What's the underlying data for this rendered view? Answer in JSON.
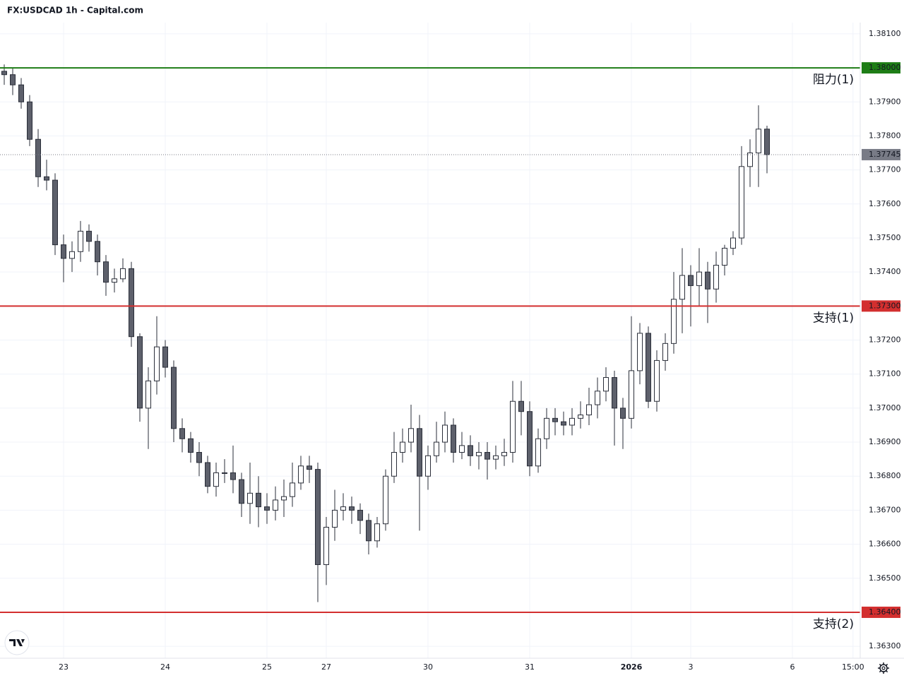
{
  "chart_data": {
    "type": "candlestick",
    "title": "FX:USDCAD 1h - Capital.com",
    "x": [
      -14,
      -12,
      -10,
      -8,
      -6,
      -4,
      -2,
      0,
      2,
      4,
      6,
      8,
      10,
      12,
      14,
      16,
      18,
      20,
      22,
      24,
      26,
      28,
      30,
      32,
      34,
      36,
      38,
      40,
      42,
      44,
      46,
      48,
      50,
      52,
      54,
      56,
      58,
      60,
      62,
      64,
      66,
      68,
      70,
      72,
      74,
      76,
      78,
      80,
      82,
      84,
      86,
      88,
      90,
      92,
      94,
      96,
      98,
      100,
      102,
      104,
      106,
      108,
      110,
      112,
      114,
      116,
      118,
      120,
      122,
      124,
      126,
      128,
      130,
      132,
      134,
      136,
      138,
      140,
      142,
      144,
      146,
      148,
      150,
      152,
      154,
      156,
      158,
      160,
      162,
      164,
      166
    ],
    "open": [
      1.3799,
      1.3798,
      1.3795,
      1.379,
      1.3779,
      1.3768,
      1.3767,
      1.3748,
      1.3744,
      1.3746,
      1.3752,
      1.3749,
      1.3743,
      1.3737,
      1.3738,
      1.3741,
      1.3721,
      1.37,
      1.3708,
      1.3718,
      1.3712,
      1.3694,
      1.3691,
      1.3687,
      1.3684,
      1.3677,
      1.3681,
      1.3681,
      1.3679,
      1.3672,
      1.3675,
      1.3671,
      1.367,
      1.3673,
      1.3674,
      1.3678,
      1.3683,
      1.3682,
      1.3654,
      1.3665,
      1.367,
      1.3671,
      1.367,
      1.3667,
      1.3661,
      1.3666,
      1.368,
      1.3687,
      1.369,
      1.3694,
      1.368,
      1.3686,
      1.369,
      1.3695,
      1.3687,
      1.3689,
      1.3686,
      1.3687,
      1.3685,
      1.3686,
      1.3687,
      1.3702,
      1.3699,
      1.3683,
      1.3691,
      1.3697,
      1.3696,
      1.3695,
      1.3697,
      1.3698,
      1.3701,
      1.3705,
      1.3709,
      1.37,
      1.3697,
      1.3711,
      1.3722,
      1.3702,
      1.3714,
      1.3719,
      1.3732,
      1.3739,
      1.3736,
      1.374,
      1.3735,
      1.3742,
      1.3747,
      1.375,
      1.3771,
      1.3775,
      1.3782
    ],
    "high": [
      1.3801,
      1.38,
      1.3797,
      1.3792,
      1.3782,
      1.3773,
      1.3769,
      1.3751,
      1.3749,
      1.3755,
      1.3754,
      1.3751,
      1.3745,
      1.3741,
      1.3744,
      1.3743,
      1.3722,
      1.3712,
      1.3727,
      1.372,
      1.3714,
      1.3697,
      1.3693,
      1.369,
      1.3686,
      1.3684,
      1.3685,
      1.3689,
      1.3681,
      1.3684,
      1.368,
      1.3675,
      1.3677,
      1.3679,
      1.3684,
      1.3686,
      1.3686,
      1.3684,
      1.3668,
      1.3676,
      1.3675,
      1.3674,
      1.3672,
      1.3669,
      1.3668,
      1.3682,
      1.3693,
      1.3694,
      1.3701,
      1.3698,
      1.3689,
      1.3696,
      1.3699,
      1.3697,
      1.3693,
      1.3692,
      1.369,
      1.369,
      1.3689,
      1.3691,
      1.3708,
      1.3708,
      1.3702,
      1.3694,
      1.37,
      1.37,
      1.3699,
      1.37,
      1.3702,
      1.3706,
      1.3709,
      1.3712,
      1.3711,
      1.3703,
      1.3727,
      1.3725,
      1.3724,
      1.3717,
      1.3722,
      1.374,
      1.3747,
      1.3742,
      1.3747,
      1.3743,
      1.3746,
      1.3748,
      1.3752,
      1.3777,
      1.3779,
      1.3789,
      1.3783
    ],
    "low": [
      1.3795,
      1.3792,
      1.3788,
      1.3777,
      1.3765,
      1.3764,
      1.3745,
      1.3737,
      1.374,
      1.3743,
      1.3746,
      1.3739,
      1.3733,
      1.3734,
      1.3737,
      1.3718,
      1.3696,
      1.3688,
      1.3704,
      1.3709,
      1.369,
      1.3687,
      1.3684,
      1.368,
      1.3675,
      1.3674,
      1.3678,
      1.3675,
      1.3668,
      1.3666,
      1.3665,
      1.3666,
      1.3667,
      1.3668,
      1.3671,
      1.3676,
      1.3678,
      1.3643,
      1.3648,
      1.3661,
      1.3667,
      1.3666,
      1.3663,
      1.3657,
      1.3659,
      1.3664,
      1.3678,
      1.3684,
      1.3687,
      1.3664,
      1.3676,
      1.3684,
      1.3687,
      1.3684,
      1.3685,
      1.3683,
      1.3682,
      1.3679,
      1.3682,
      1.3683,
      1.3684,
      1.3692,
      1.368,
      1.3681,
      1.3688,
      1.3692,
      1.3692,
      1.3692,
      1.3694,
      1.3695,
      1.3697,
      1.3702,
      1.3689,
      1.3688,
      1.3694,
      1.3707,
      1.37,
      1.3699,
      1.3711,
      1.3716,
      1.3722,
      1.3724,
      1.373,
      1.3725,
      1.3731,
      1.3739,
      1.3745,
      1.3748,
      1.3765,
      1.3765,
      1.3769
    ],
    "close": [
      1.3798,
      1.3795,
      1.379,
      1.3779,
      1.3768,
      1.3767,
      1.3748,
      1.3744,
      1.3746,
      1.3752,
      1.3749,
      1.3743,
      1.3737,
      1.3738,
      1.3741,
      1.3721,
      1.37,
      1.3708,
      1.3718,
      1.3712,
      1.3694,
      1.3691,
      1.3687,
      1.3684,
      1.3677,
      1.3681,
      1.3681,
      1.3679,
      1.3672,
      1.3675,
      1.3671,
      1.367,
      1.3673,
      1.3674,
      1.3678,
      1.3683,
      1.3682,
      1.3654,
      1.3665,
      1.367,
      1.3671,
      1.367,
      1.3667,
      1.3661,
      1.3666,
      1.368,
      1.3687,
      1.369,
      1.3694,
      1.368,
      1.3686,
      1.369,
      1.3695,
      1.3687,
      1.3689,
      1.3686,
      1.3687,
      1.3685,
      1.3686,
      1.3687,
      1.3702,
      1.3699,
      1.3683,
      1.3691,
      1.3697,
      1.3696,
      1.3695,
      1.3697,
      1.3698,
      1.3701,
      1.3705,
      1.3709,
      1.37,
      1.3697,
      1.3711,
      1.3722,
      1.3702,
      1.3714,
      1.3719,
      1.3732,
      1.3739,
      1.3736,
      1.374,
      1.3735,
      1.3742,
      1.3747,
      1.375,
      1.3771,
      1.3775,
      1.3782,
      1.37745
    ],
    "up_color": "#ffffff",
    "down_color": "#5d606b",
    "outline_color": "#2a2e39",
    "xlim": [
      -15,
      188
    ],
    "xticks": [
      {
        "value": 0,
        "label": "23"
      },
      {
        "value": 24,
        "label": "24"
      },
      {
        "value": 48,
        "label": "25"
      },
      {
        "value": 62,
        "label": "27"
      },
      {
        "value": 86,
        "label": "30"
      },
      {
        "value": 110,
        "label": "31"
      },
      {
        "value": 134,
        "label": "2026"
      },
      {
        "value": 148,
        "label": "3"
      },
      {
        "value": 172,
        "label": "6"
      },
      {
        "value": 186.3,
        "label": "15:00"
      }
    ],
    "ylim": [
      1.36265,
      1.38133
    ],
    "yticks": [
      {
        "value": 1.363,
        "label": "1.36300"
      },
      {
        "value": 1.364,
        "label": "1.36400"
      },
      {
        "value": 1.365,
        "label": "1.36500"
      },
      {
        "value": 1.366,
        "label": "1.36600"
      },
      {
        "value": 1.367,
        "label": "1.36700"
      },
      {
        "value": 1.368,
        "label": "1.36800"
      },
      {
        "value": 1.369,
        "label": "1.36900"
      },
      {
        "value": 1.37,
        "label": "1.37000"
      },
      {
        "value": 1.371,
        "label": "1.37100"
      },
      {
        "value": 1.372,
        "label": "1.37200"
      },
      {
        "value": 1.373,
        "label": "1.37300"
      },
      {
        "value": 1.374,
        "label": "1.37400"
      },
      {
        "value": 1.375,
        "label": "1.37500"
      },
      {
        "value": 1.376,
        "label": "1.37600"
      },
      {
        "value": 1.377,
        "label": "1.37700"
      },
      {
        "value": 1.378,
        "label": "1.37800"
      },
      {
        "value": 1.379,
        "label": "1.37900"
      },
      {
        "value": 1.38,
        "label": "1.38000"
      },
      {
        "value": 1.381,
        "label": "1.38100"
      }
    ],
    "grid": true,
    "levels": [
      {
        "name": "阻力(1)",
        "value": 1.38,
        "label": "1.38000",
        "color": "#1e7d16"
      },
      {
        "name": "支持(1)",
        "value": 1.373,
        "label": "1.37300",
        "color": "#d32f2f"
      },
      {
        "name": "支持(2)",
        "value": 1.364,
        "label": "1.36400",
        "color": "#d32f2f"
      }
    ],
    "last_price": {
      "value": 1.37745,
      "label": "1.37745",
      "color": "#787b86"
    }
  }
}
